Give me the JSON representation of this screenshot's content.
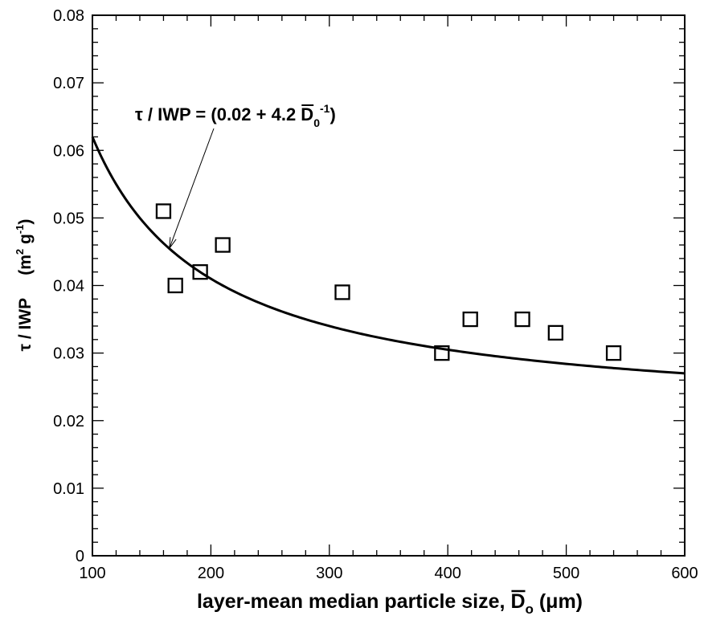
{
  "chart_data": {
    "type": "scatter",
    "xlim": [
      100,
      600
    ],
    "ylim": [
      0,
      0.08
    ],
    "x_ticks": [
      100,
      200,
      300,
      400,
      500,
      600
    ],
    "y_ticks": [
      0,
      0.01,
      0.02,
      0.03,
      0.04,
      0.05,
      0.06,
      0.07,
      0.08
    ],
    "x_tick_labels": [
      "100",
      "200",
      "300",
      "400",
      "500",
      "600"
    ],
    "y_tick_labels": [
      "0",
      "0.01",
      "0.02",
      "0.03",
      "0.04",
      "0.05",
      "0.06",
      "0.07",
      "0.08"
    ],
    "x_minor_step": 20,
    "y_minor_step": 0.002,
    "grid": false,
    "xlabel": {
      "prefix": "layer-mean median particle size, ",
      "symbol": "D",
      "subscript": "o",
      "unit": " (μm)"
    },
    "ylabel": {
      "text": "τ / IWP",
      "unit_open": "(m",
      "unit_exp1": "2",
      "unit_mid": " g",
      "unit_exp2": "-1",
      "unit_close": ")"
    },
    "series": [
      {
        "kind": "points",
        "marker": "open-square",
        "x": [
          160,
          170,
          191,
          210,
          311,
          395,
          419,
          463,
          491,
          540
        ],
        "y": [
          0.051,
          0.04,
          0.042,
          0.046,
          0.039,
          0.03,
          0.035,
          0.035,
          0.033,
          0.03
        ]
      },
      {
        "kind": "curve",
        "formula": {
          "a": 0.02,
          "b": 4.2,
          "form": "a + b / x"
        },
        "x_range": [
          100,
          600
        ]
      }
    ],
    "annotation": {
      "prefix": "τ / IWP = (0.02 + 4.2 ",
      "symbol": "D",
      "subscript": "0",
      "superscript": "-1",
      "suffix": ")",
      "arrow_to": {
        "x": 165,
        "y": 0.0455
      }
    }
  }
}
